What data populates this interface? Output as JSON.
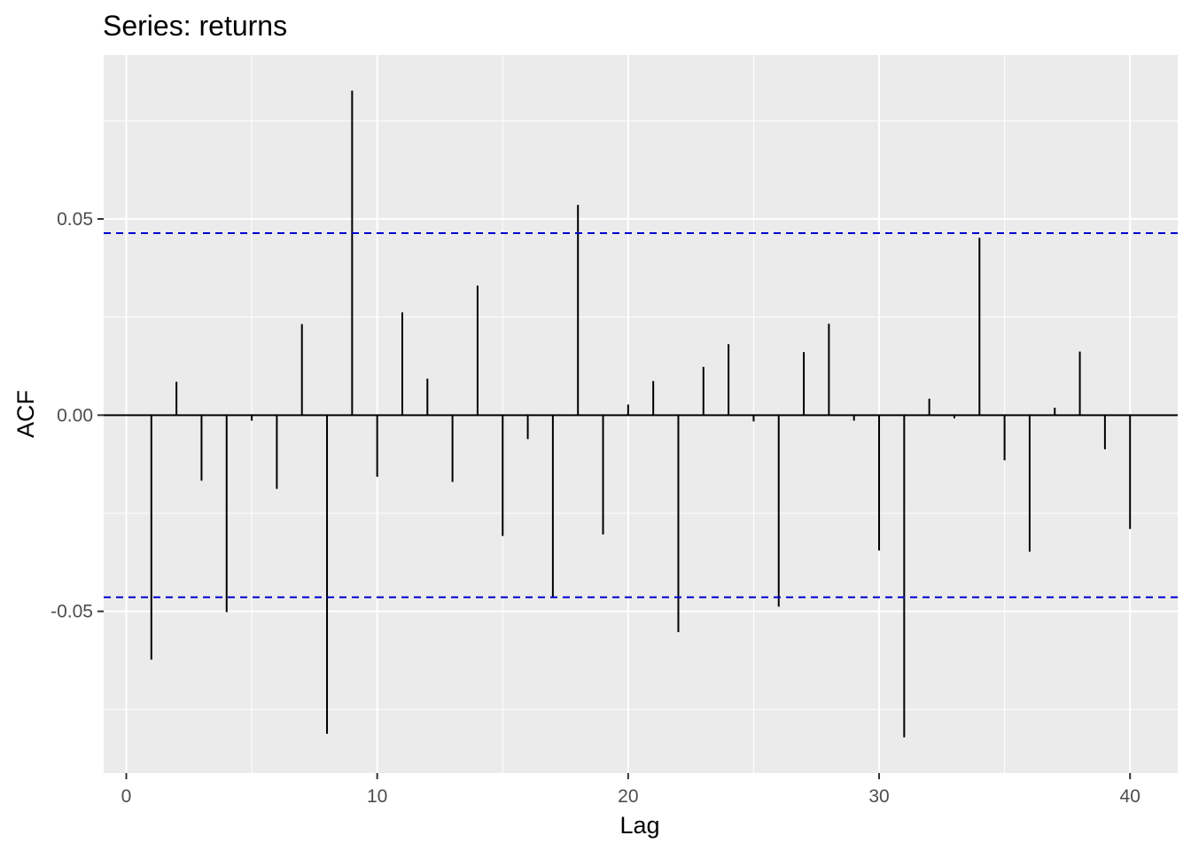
{
  "chart_data": {
    "type": "bar",
    "title": "Series: returns",
    "xlabel": "Lag",
    "ylabel": "ACF",
    "xlim": [
      -0.9,
      41.9
    ],
    "ylim": [
      -0.0912,
      0.0918
    ],
    "x_ticks": [
      0,
      10,
      20,
      30,
      40
    ],
    "x_tick_labels": [
      "0",
      "10",
      "20",
      "30",
      "40"
    ],
    "y_ticks": [
      -0.05,
      0.0,
      0.05
    ],
    "y_tick_labels": [
      "-0.05",
      "0.00",
      "0.05"
    ],
    "grid": true,
    "confidence_band": 0.0464,
    "lags": [
      1,
      2,
      3,
      4,
      5,
      6,
      7,
      8,
      9,
      10,
      11,
      12,
      13,
      14,
      15,
      16,
      17,
      18,
      19,
      20,
      21,
      22,
      23,
      24,
      25,
      26,
      27,
      28,
      29,
      30,
      31,
      32,
      33,
      34,
      35,
      36,
      37,
      38,
      39,
      40
    ],
    "values": [
      -0.0623,
      0.0085,
      -0.0167,
      -0.0502,
      -0.0014,
      -0.0188,
      0.0232,
      -0.0812,
      0.0827,
      -0.0157,
      0.0262,
      0.0093,
      -0.017,
      0.033,
      -0.0308,
      -0.0061,
      -0.0466,
      0.0536,
      -0.0304,
      0.0027,
      0.0087,
      -0.0553,
      0.0123,
      0.0181,
      -0.0016,
      -0.0488,
      0.0161,
      0.0233,
      -0.0014,
      -0.0345,
      -0.0821,
      0.0042,
      -0.0008,
      0.0452,
      -0.0115,
      -0.0348,
      0.0019,
      0.0162,
      -0.0087,
      -0.029
    ],
    "colors": {
      "panel": "#ebebeb",
      "grid": "#ffffff",
      "bars": "#000000",
      "band": "#0000cd",
      "tick": "#333333"
    }
  }
}
